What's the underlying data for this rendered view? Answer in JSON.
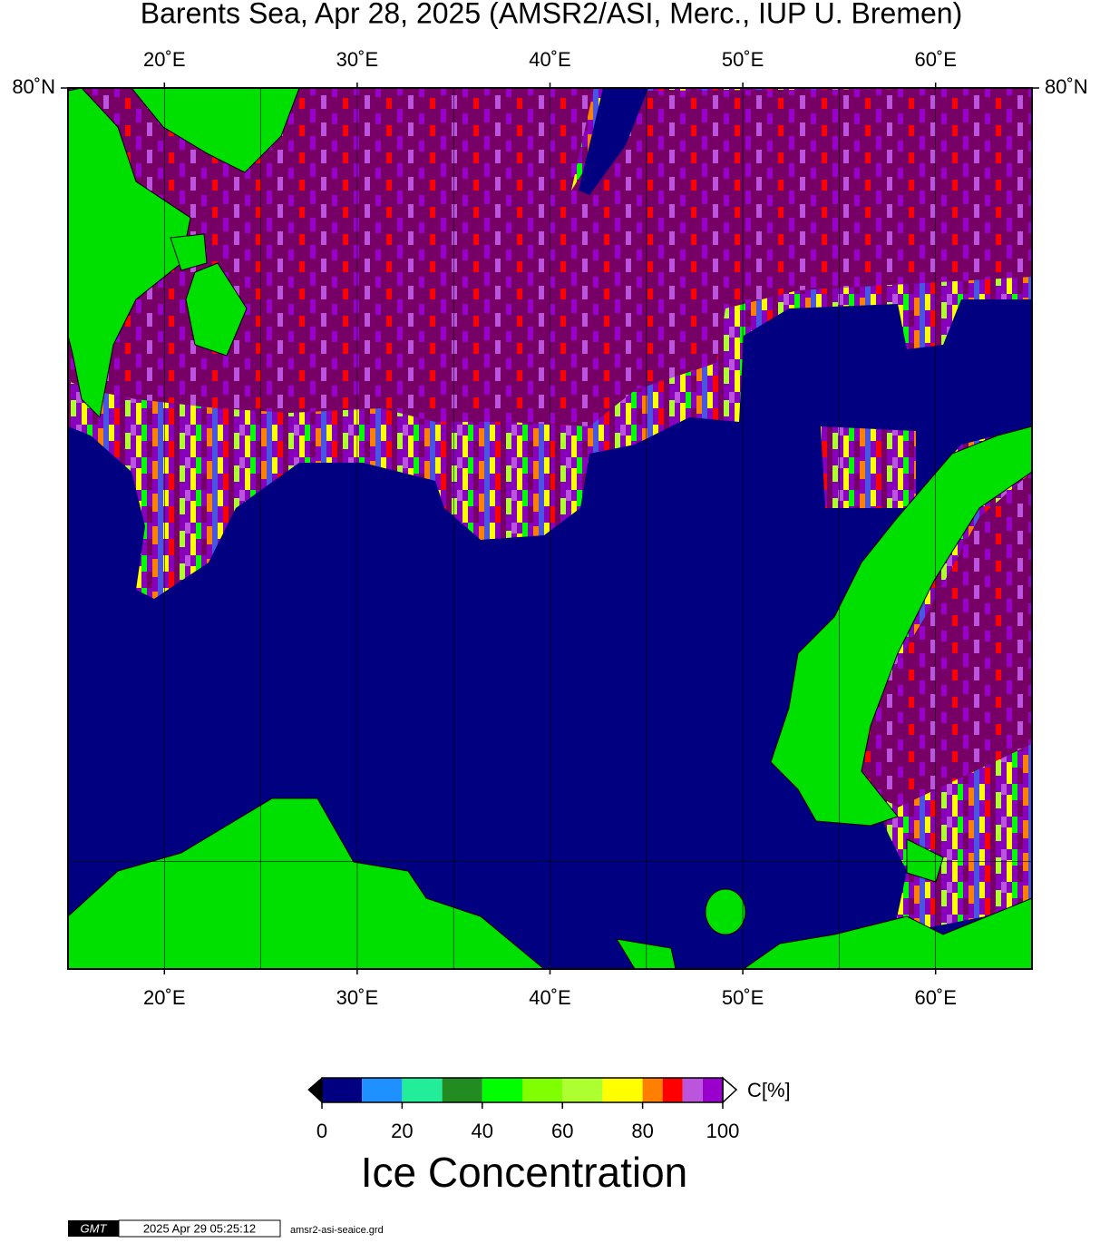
{
  "title": "Barents Sea, Apr 28, 2025 (AMSR2/ASI, Merc., IUP U. Bremen)",
  "map": {
    "projection": "mercator",
    "xlim": [
      15,
      65
    ],
    "ylim": [
      68,
      80
    ],
    "xticks": [
      {
        "value": 20,
        "label": "20˚E"
      },
      {
        "value": 30,
        "label": "30˚E"
      },
      {
        "value": 40,
        "label": "40˚E"
      },
      {
        "value": 50,
        "label": "50˚E"
      },
      {
        "value": 60,
        "label": "60˚E"
      }
    ],
    "yticks": [
      {
        "value": 80,
        "label": "80˚N"
      }
    ],
    "grid_lons": [
      20,
      25,
      30,
      35,
      40,
      45,
      50,
      55,
      60
    ],
    "grid_lats": [
      70
    ]
  },
  "colorbar": {
    "bounds": [
      0,
      10,
      20,
      30,
      40,
      50,
      60,
      70,
      80,
      85,
      90,
      95,
      100
    ],
    "colors": [
      "#000080",
      "#1e90ff",
      "#22ee99",
      "#228b22",
      "#00ff00",
      "#7fff00",
      "#adff2f",
      "#ffff00",
      "#ff8000",
      "#ff0000",
      "#bb55dd",
      "#9a00cc"
    ],
    "ticks": [
      0,
      20,
      40,
      60,
      80,
      100
    ],
    "unit_label": "C[%]",
    "label": "Ice Concentration"
  },
  "footer": {
    "logo": "GMT",
    "timestamp": "2025 Apr 29 05:25:12",
    "file": "amsr2-asi-seaice.grd"
  }
}
